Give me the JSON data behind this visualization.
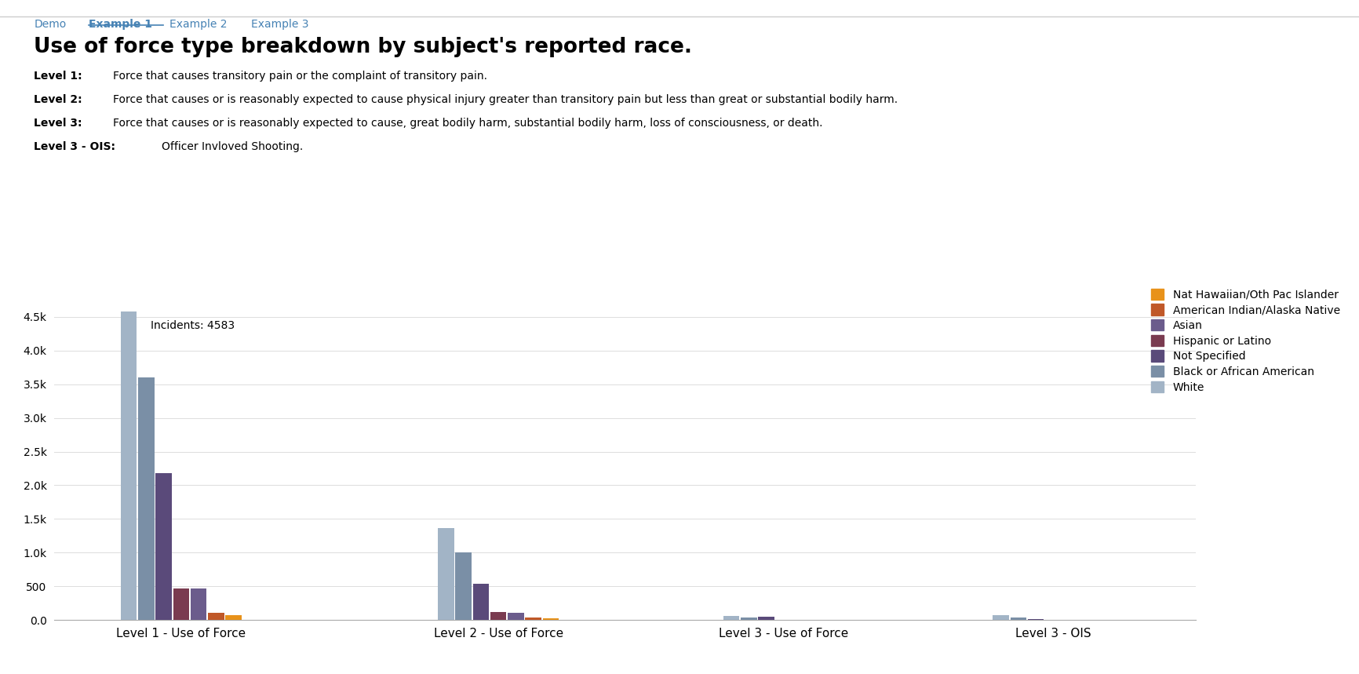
{
  "groups": [
    "Level 1 - Use of Force",
    "Level 2 - Use of Force",
    "Level 3 - Use of Force",
    "Level 3 - OIS"
  ],
  "races": [
    "White",
    "Black or African American",
    "Not Specified",
    "Hispanic or Latino",
    "Asian",
    "American Indian/Alaska Native",
    "Nat Hawaiian/Oth Pac Islander"
  ],
  "colors": [
    "#a2b4c6",
    "#7a8fa6",
    "#5a4a7a",
    "#7a3b50",
    "#6b5c8c",
    "#c05828",
    "#e8921a"
  ],
  "values": {
    "Level 1 - Use of Force": [
      4583,
      3600,
      2180,
      470,
      470,
      110,
      70
    ],
    "Level 2 - Use of Force": [
      1370,
      1000,
      540,
      115,
      110,
      35,
      28
    ],
    "Level 3 - Use of Force": [
      60,
      35,
      50,
      8,
      8,
      5,
      4
    ],
    "Level 3 - OIS": [
      68,
      38,
      12,
      5,
      5,
      4,
      3
    ]
  },
  "annotation": "Incidents: 4583",
  "ylim": [
    0,
    4700
  ],
  "yticks": [
    0,
    500,
    1000,
    1500,
    2000,
    2500,
    3000,
    3500,
    4000,
    4500
  ],
  "bar_width": 0.055,
  "figsize": [
    17.32,
    8.59
  ],
  "dpi": 100,
  "nav_links": [
    "Demo",
    "Example 1",
    "Example 2",
    "Example 3"
  ],
  "nav_active": 1,
  "title": "Use of force type breakdown by subject's reported race.",
  "level_labels": [
    "Level 1:",
    "Level 2:",
    "Level 3:",
    "Level 3 - OIS:"
  ],
  "level_texts": [
    "Force that causes transitory pain or the complaint of transitory pain.",
    "Force that causes or is reasonably expected to cause physical injury greater than transitory pain but less than great or substantial bodily harm.",
    "Force that causes or is reasonably expected to cause, great bodily harm, substantial bodily harm, loss of consciousness, or death.",
    "Officer Invloved Shooting."
  ]
}
